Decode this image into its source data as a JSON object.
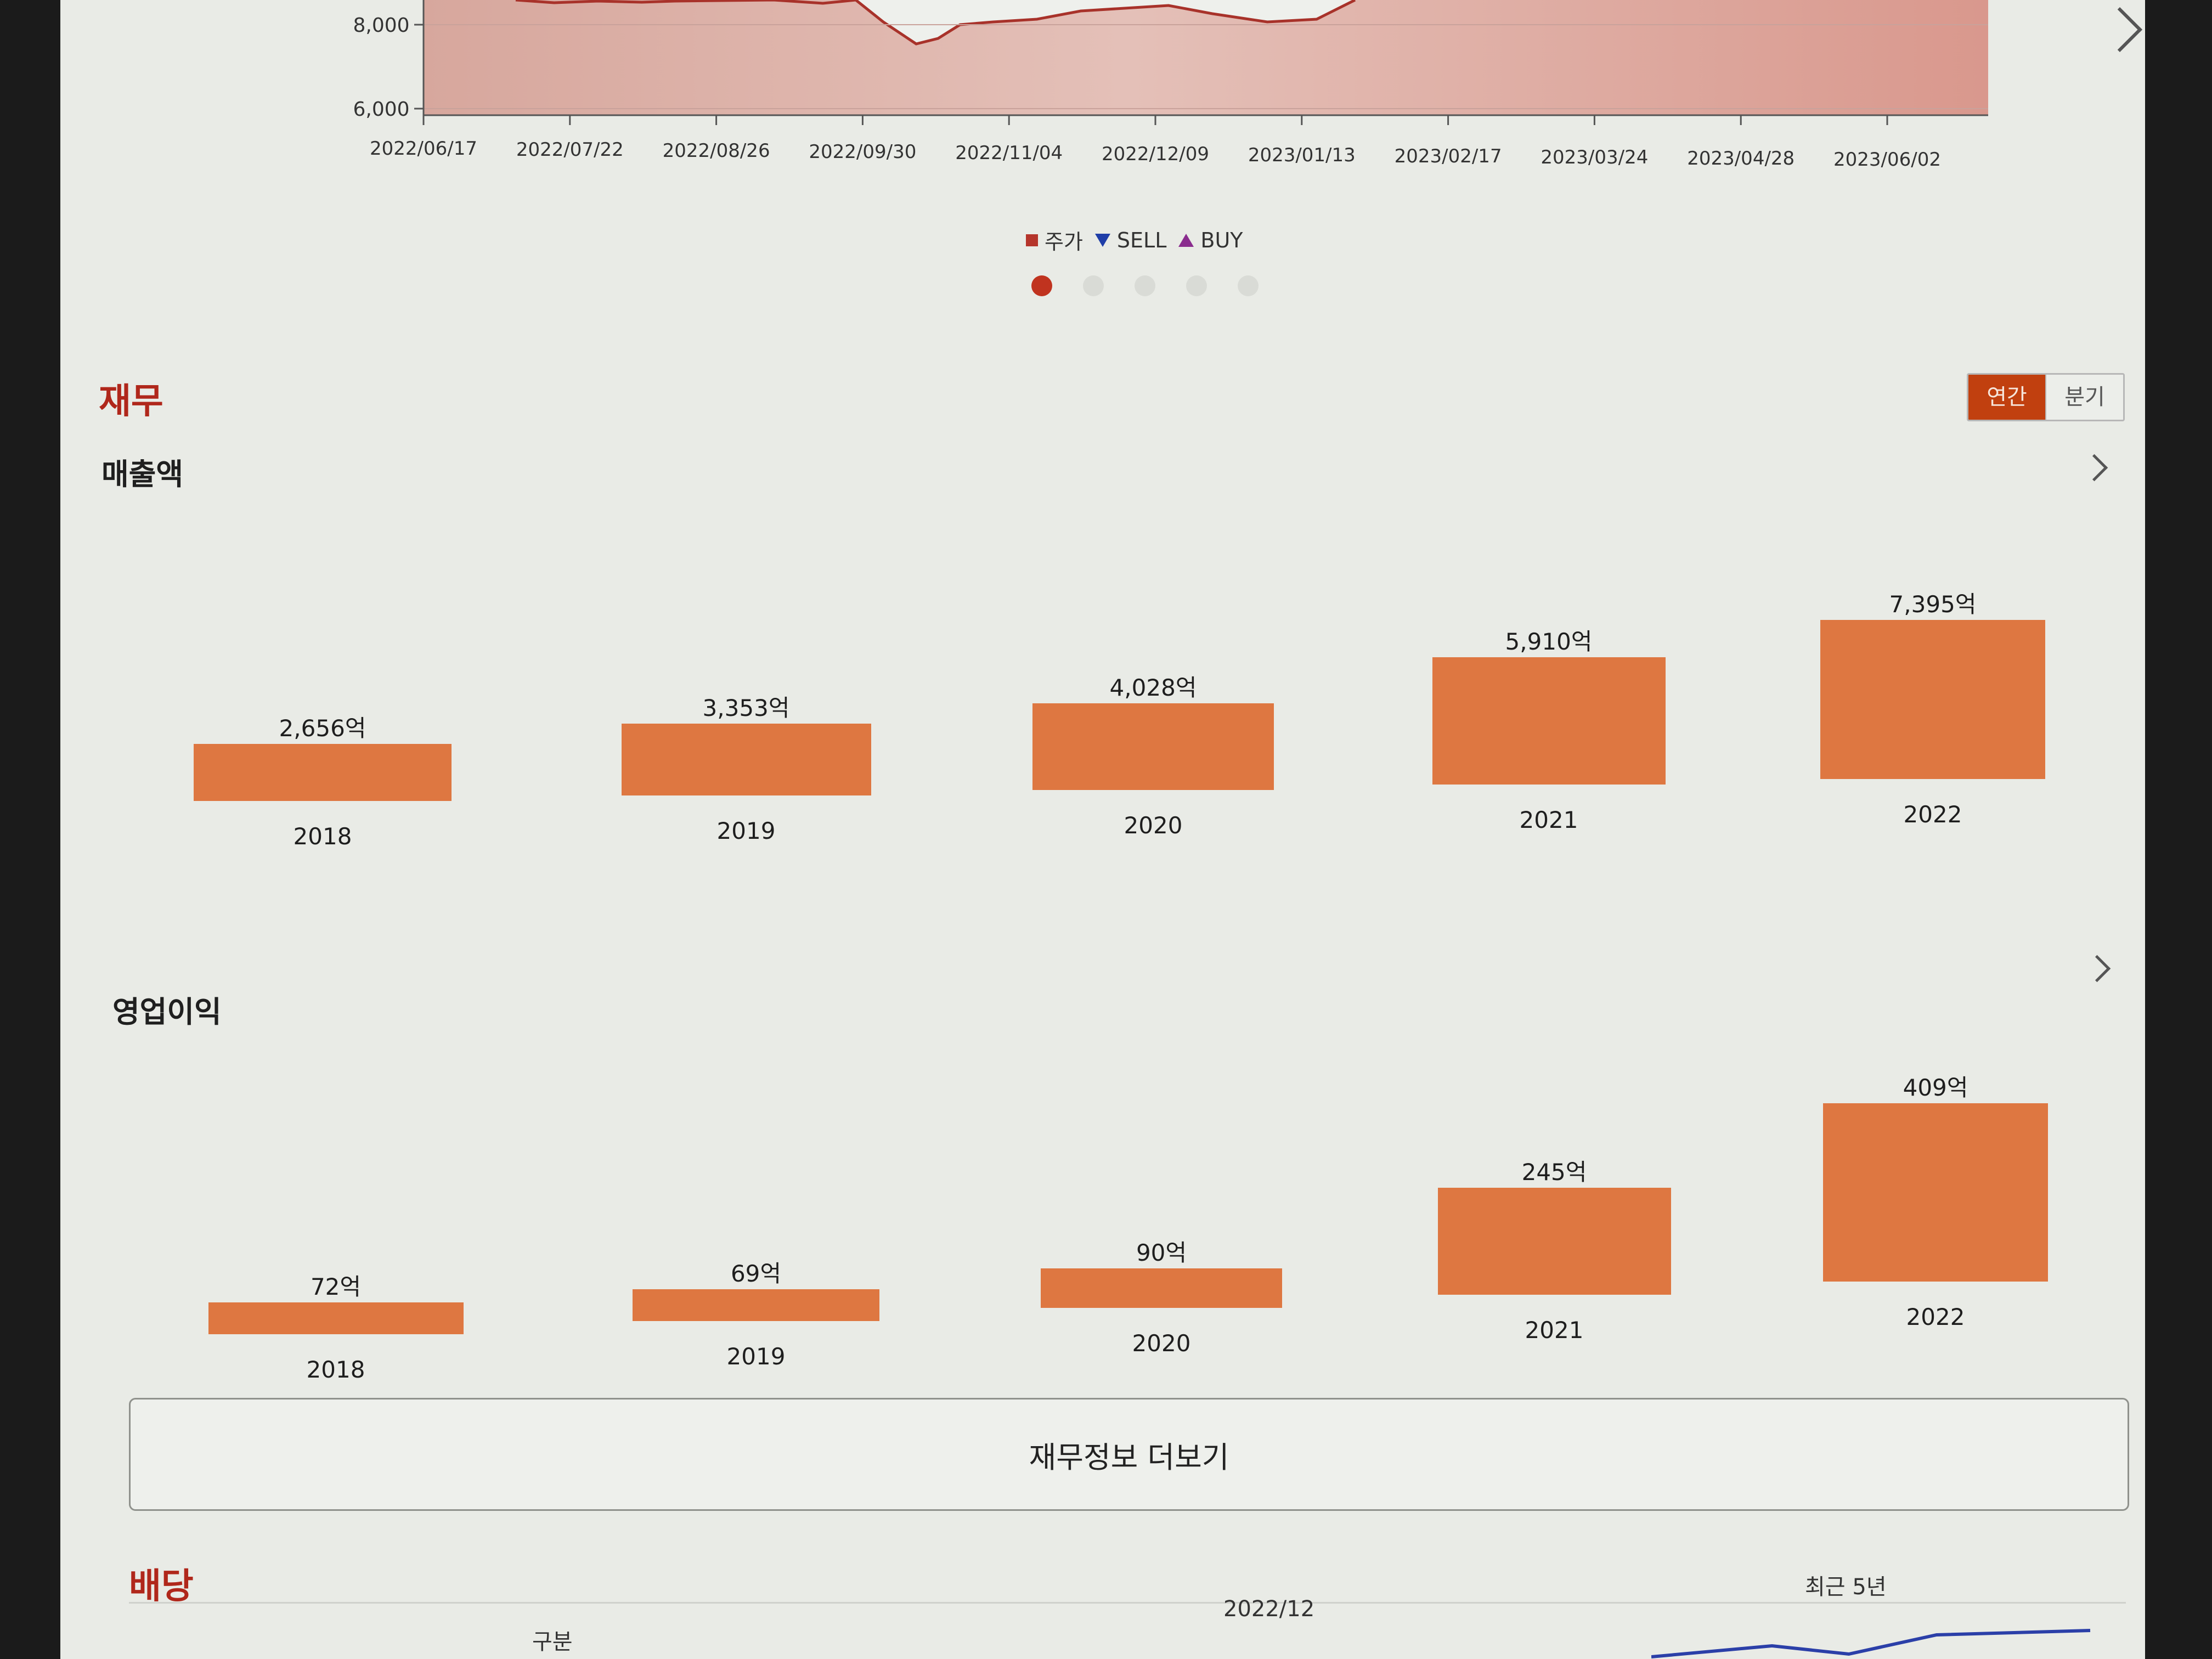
{
  "price_chart": {
    "y_ticks": [
      "8,000",
      "6,000"
    ],
    "x_ticks": [
      "2022/06/17",
      "2022/07/22",
      "2022/08/26",
      "2022/09/30",
      "2022/11/04",
      "2022/12/09",
      "2023/01/13",
      "2023/02/17",
      "2023/03/24",
      "2023/04/28",
      "2023/06/02"
    ],
    "legend": [
      {
        "label": "주가",
        "color": "#b5352b"
      },
      {
        "label": "SELL",
        "color": "#1f3ea8"
      },
      {
        "label": "BUY",
        "color": "#8a2c8e"
      }
    ],
    "pager_dots": 5,
    "active_dot": 0
  },
  "finance": {
    "title": "재무",
    "period_toggle": {
      "annual": "연간",
      "quarterly": "분기",
      "selected": "annual"
    },
    "more_button": "재무정보 더보기"
  },
  "chart_data": [
    {
      "type": "bar",
      "title": "매출액",
      "categories": [
        "2018",
        "2019",
        "2020",
        "2021",
        "2022"
      ],
      "values": [
        2656,
        3353,
        4028,
        5910,
        7395
      ],
      "value_labels": [
        "2,656억",
        "3,353억",
        "4,028억",
        "5,910억",
        "7,395억"
      ],
      "unit": "억"
    },
    {
      "type": "bar",
      "title": "영업이익",
      "categories": [
        "2018",
        "2019",
        "2020",
        "2021",
        "2022"
      ],
      "values": [
        72,
        69,
        90,
        245,
        409
      ],
      "value_labels": [
        "72억",
        "69억",
        "90억",
        "245억",
        "409억"
      ],
      "unit": "억"
    }
  ],
  "dividend": {
    "title": "배당",
    "col_label": "구분",
    "period": "2022/12",
    "recent": "최근 5년"
  }
}
